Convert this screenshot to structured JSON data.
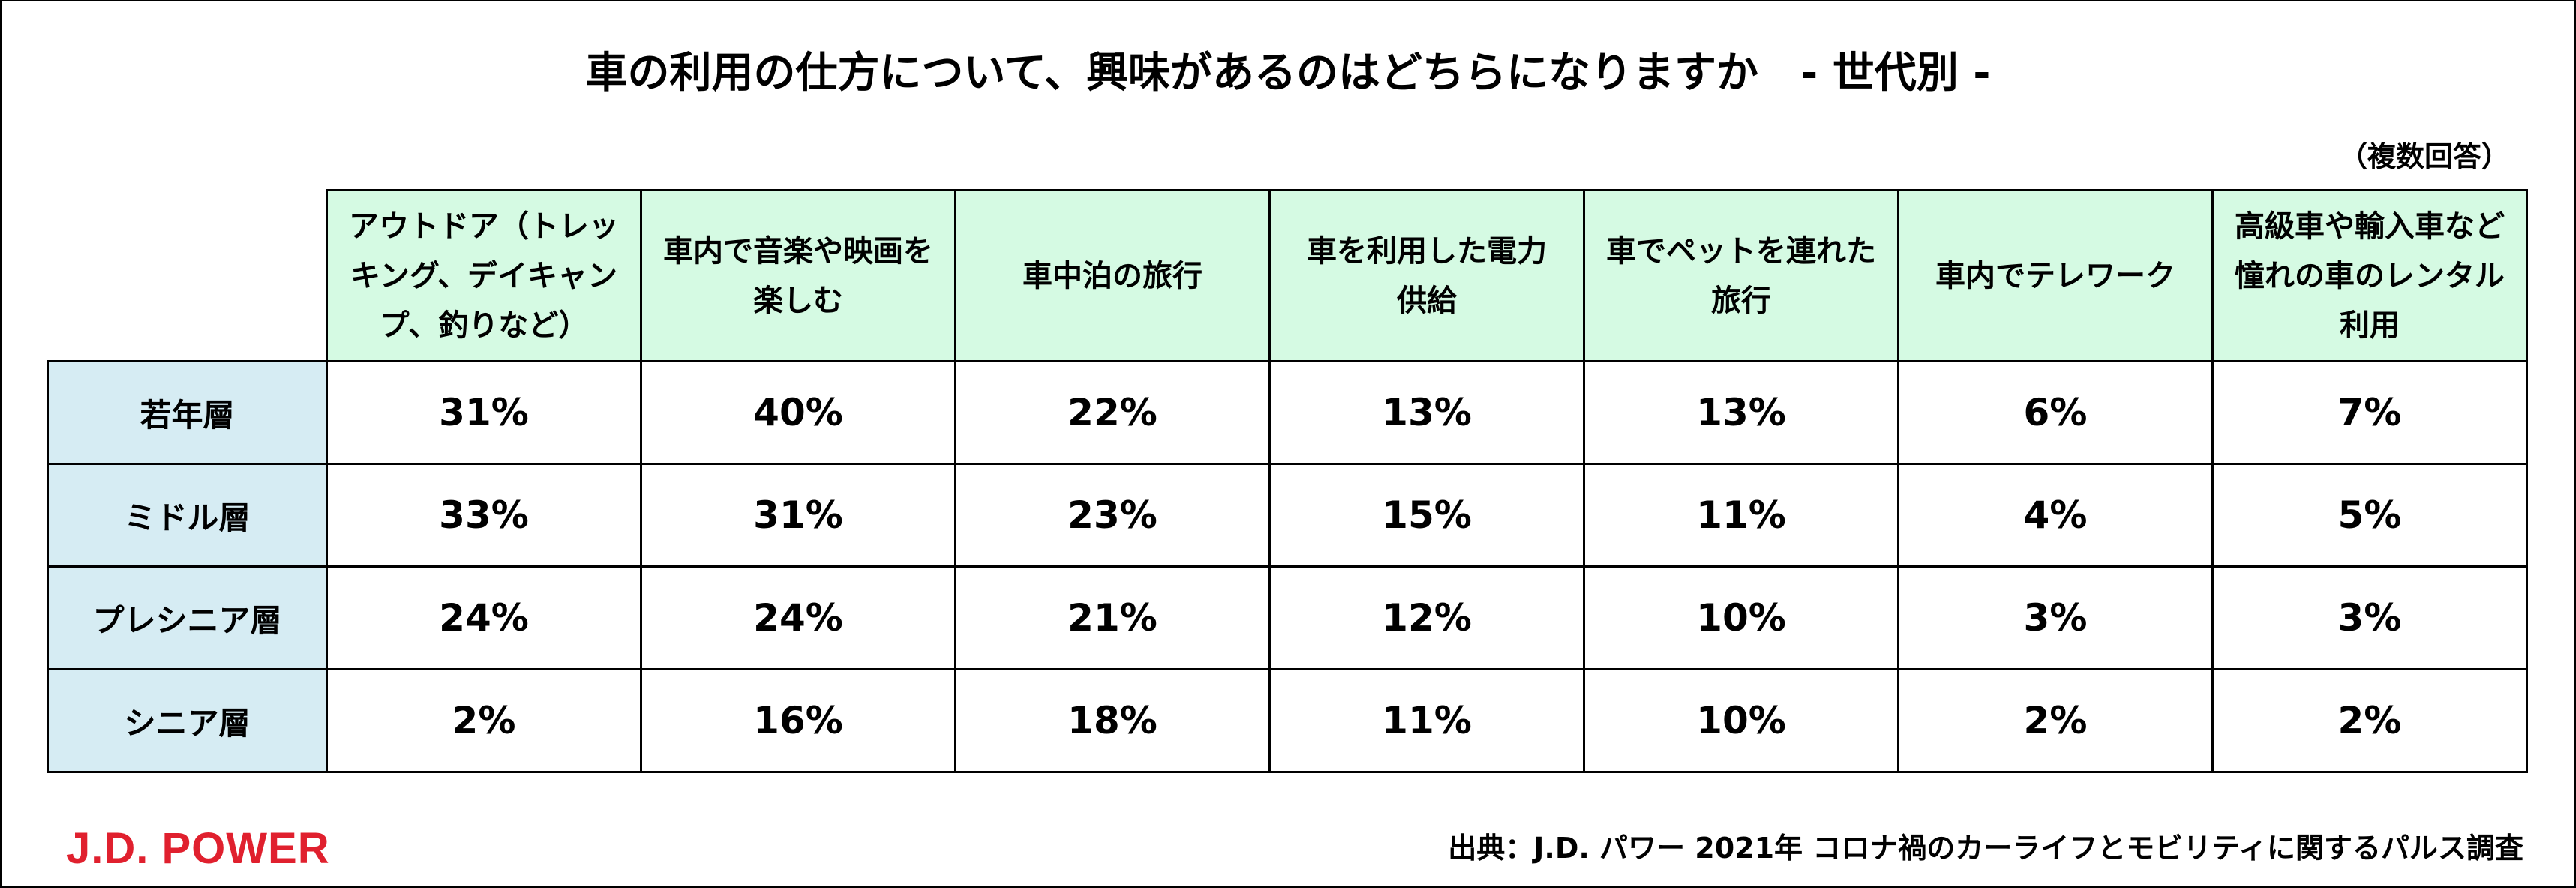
{
  "title": "車の利用の仕方について、興味があるのはどちらになりますか　- 世代別 -",
  "note": "（複数回答）",
  "source": "出典：J.D. パワー 2021年 コロナ禍のカーライフとモビリティに関するパルス調査",
  "logo_text": "J.D. POWER",
  "colors": {
    "header_bg": "#d5fae3",
    "row_header_bg": "#d6ecf3",
    "logo": "#e0202e"
  },
  "chart_data": {
    "type": "table",
    "title": "車の利用の仕方について、興味があるのはどちらになりますか　- 世代別 -",
    "columns": [
      {
        "lines": [
          "アウトドア（トレッ",
          "キング、デイキャン",
          "プ、釣りなど）"
        ]
      },
      {
        "lines": [
          "車内で音楽や映画を",
          "楽しむ"
        ]
      },
      {
        "lines": [
          "車中泊の旅行"
        ]
      },
      {
        "lines": [
          "車を利用した電力",
          "供給"
        ]
      },
      {
        "lines": [
          "車でペットを連れた",
          "旅行"
        ]
      },
      {
        "lines": [
          "車内でテレワーク"
        ]
      },
      {
        "lines": [
          "高級車や輸入車など",
          "憧れの車のレンタル",
          "利用"
        ]
      }
    ],
    "rows": [
      {
        "label": "若年層",
        "values": [
          "31%",
          "40%",
          "22%",
          "13%",
          "13%",
          "6%",
          "7%"
        ]
      },
      {
        "label": "ミドル層",
        "values": [
          "33%",
          "31%",
          "23%",
          "15%",
          "11%",
          "4%",
          "5%"
        ]
      },
      {
        "label": "プレシニア層",
        "values": [
          "24%",
          "24%",
          "21%",
          "12%",
          "10%",
          "3%",
          "3%"
        ]
      },
      {
        "label": "シニア層",
        "values": [
          "2%",
          "16%",
          "18%",
          "11%",
          "10%",
          "2%",
          "2%"
        ]
      }
    ]
  }
}
